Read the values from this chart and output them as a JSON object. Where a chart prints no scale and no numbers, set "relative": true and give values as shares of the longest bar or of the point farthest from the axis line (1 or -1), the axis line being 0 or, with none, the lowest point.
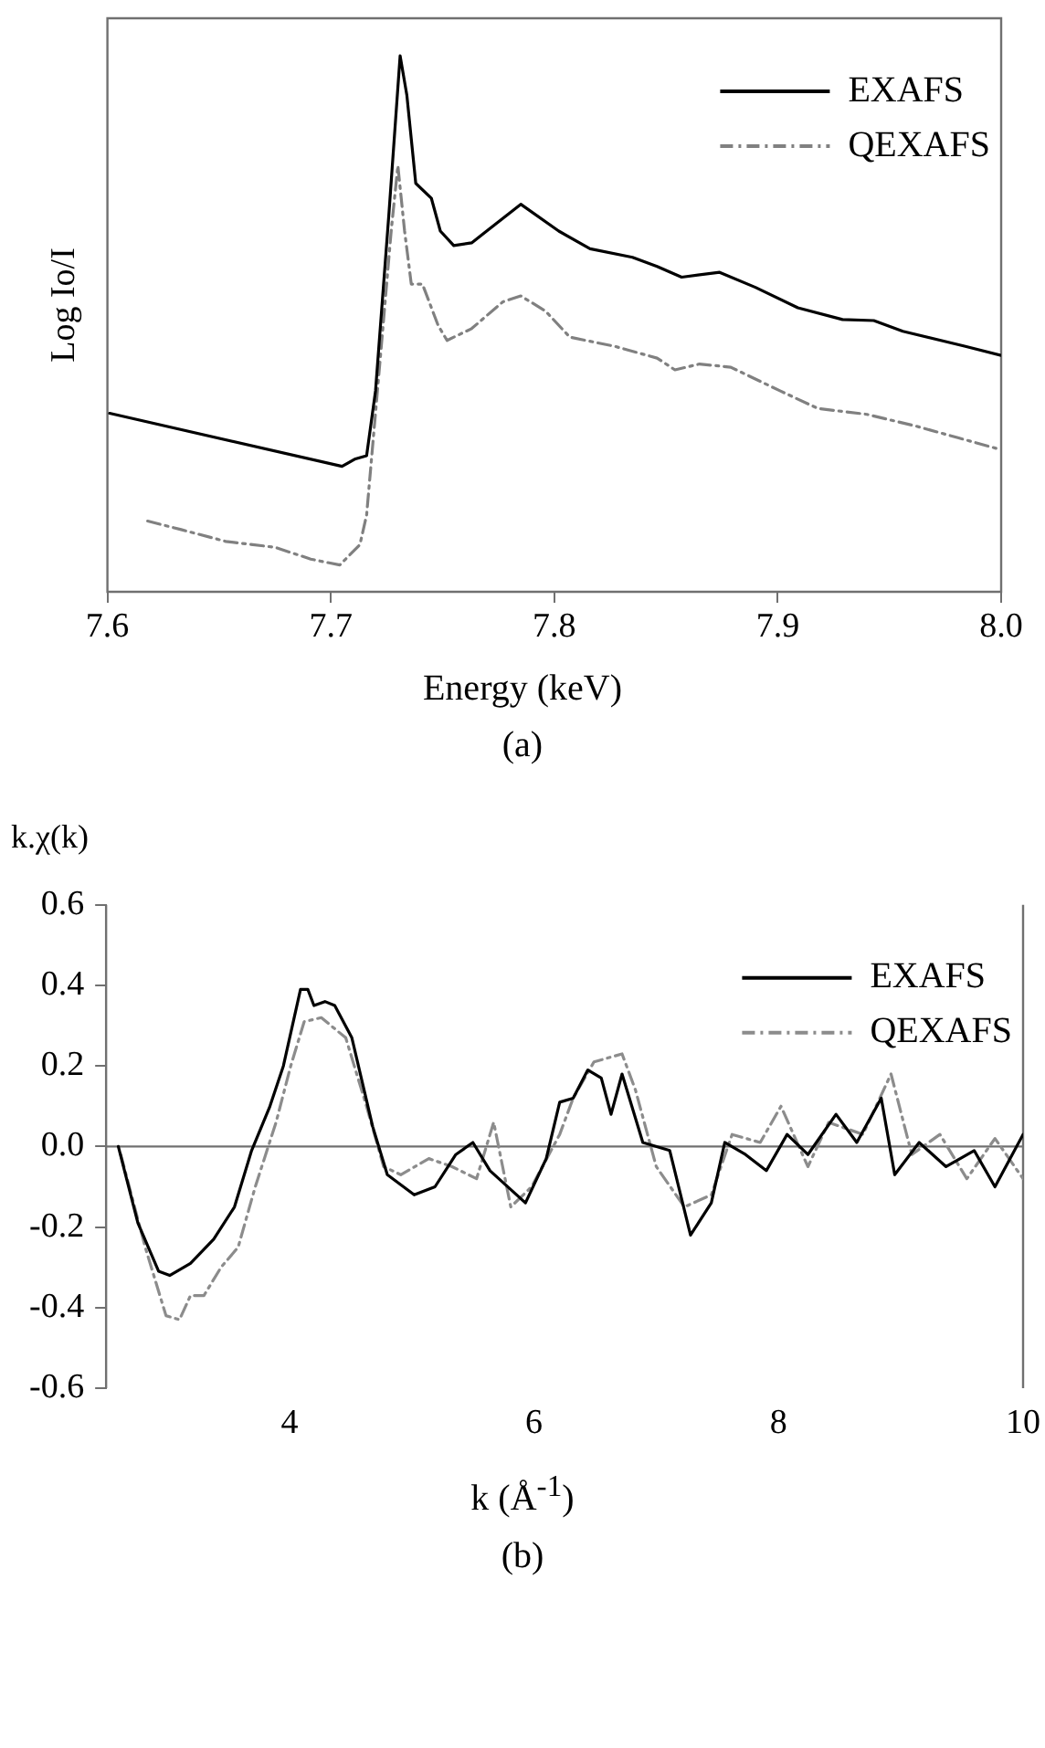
{
  "chart_data": [
    {
      "type": "line",
      "xlabel": "Energy (keV)",
      "ylabel": "Log Io/I",
      "relative": true,
      "xlim": [
        7.6,
        8.0
      ],
      "xticks": [
        7.6,
        7.7,
        7.8,
        7.9,
        {
          "value": 8,
          "label": "8.0"
        }
      ],
      "grid": false,
      "legend": "top right",
      "marker": "none",
      "annotations": [
        "(a)"
      ],
      "series": [
        {
          "name": "EXAFS",
          "color": "#000000",
          "line_style": "solid",
          "x": [
            7.601,
            7.705,
            7.711,
            7.716,
            7.72,
            7.726,
            7.731,
            7.734,
            7.738,
            7.745,
            7.749,
            7.755,
            7.763,
            7.785,
            7.802,
            7.816,
            7.835,
            7.846,
            7.857,
            7.874,
            7.89,
            7.909,
            7.929,
            7.943,
            7.956,
            7.984,
            8.0
          ],
          "values": [
            0.333,
            0.234,
            0.248,
            0.254,
            0.375,
            0.706,
            1.0,
            0.927,
            0.762,
            0.734,
            0.673,
            0.646,
            0.651,
            0.723,
            0.673,
            0.64,
            0.624,
            0.607,
            0.587,
            0.596,
            0.568,
            0.53,
            0.508,
            0.506,
            0.486,
            0.458,
            0.441
          ]
        },
        {
          "name": "QEXAFS",
          "color": "#808080",
          "line_style": "dashed",
          "x": [
            7.618,
            7.633,
            7.653,
            7.675,
            7.691,
            7.704,
            7.713,
            7.716,
            7.722,
            7.727,
            7.73,
            7.733,
            7.736,
            7.741,
            7.748,
            7.752,
            7.763,
            7.777,
            7.785,
            7.796,
            7.807,
            7.827,
            7.846,
            7.854,
            7.865,
            7.879,
            7.901,
            7.918,
            7.94,
            7.962,
            7.981,
            8.0
          ],
          "values": [
            0.132,
            0.116,
            0.094,
            0.083,
            0.061,
            0.05,
            0.088,
            0.143,
            0.43,
            0.673,
            0.795,
            0.673,
            0.574,
            0.574,
            0.497,
            0.469,
            0.491,
            0.541,
            0.552,
            0.524,
            0.475,
            0.458,
            0.436,
            0.414,
            0.425,
            0.419,
            0.375,
            0.342,
            0.331,
            0.309,
            0.287,
            0.265
          ]
        }
      ]
    },
    {
      "type": "line",
      "xlabel": "k (Å$^{-1}$)",
      "ylabel": "k.χ(k)",
      "xlim": [
        2.5,
        10
      ],
      "xticks": [
        4,
        6,
        8,
        10
      ],
      "ylim": [
        -0.6,
        0.6
      ],
      "yticks": [
        {
          "value": -0.6,
          "label": "-0.6"
        },
        {
          "value": -0.4,
          "label": "-0.4"
        },
        {
          "value": -0.2,
          "label": "-0.2"
        },
        {
          "value": 0,
          "label": "0.0"
        },
        {
          "value": 0.2,
          "label": "0.2"
        },
        {
          "value": 0.4,
          "label": "0.4"
        },
        {
          "value": 0.6,
          "label": "0.6"
        }
      ],
      "grid": false,
      "legend": "top right",
      "marker": "none",
      "annotations": [
        "(b)"
      ],
      "ref_lines": [
        {
          "axis": "y",
          "value": 0,
          "color": "#707070"
        }
      ],
      "series": [
        {
          "name": "EXAFS",
          "color": "#000000",
          "line_style": "solid",
          "x": [
            2.6,
            2.76,
            2.93,
            3.02,
            3.19,
            3.38,
            3.55,
            3.69,
            3.84,
            3.95,
            4.09,
            4.15,
            4.2,
            4.29,
            4.37,
            4.51,
            4.68,
            4.8,
            5.02,
            5.19,
            5.36,
            5.5,
            5.64,
            5.93,
            6.1,
            6.21,
            6.32,
            6.44,
            6.55,
            6.63,
            6.72,
            6.89,
            7.11,
            7.28,
            7.45,
            7.56,
            7.73,
            7.9,
            8.07,
            8.24,
            8.47,
            8.64,
            8.84,
            8.95,
            9.15,
            9.37,
            9.6,
            9.77,
            10.0
          ],
          "values": [
            0,
            -0.19,
            -0.31,
            -0.32,
            -0.29,
            -0.23,
            -0.15,
            -0.01,
            0.1,
            0.2,
            0.39,
            0.39,
            0.35,
            0.36,
            0.35,
            0.27,
            0.05,
            -0.07,
            -0.12,
            -0.1,
            -0.02,
            0.01,
            -0.06,
            -0.14,
            -0.03,
            0.11,
            0.12,
            0.19,
            0.17,
            0.08,
            0.18,
            0.01,
            -0.01,
            -0.22,
            -0.14,
            0.01,
            -0.02,
            -0.06,
            0.03,
            -0.02,
            0.08,
            0.01,
            0.12,
            -0.07,
            0.01,
            -0.05,
            -0.01,
            -0.1,
            0.03
          ]
        },
        {
          "name": "QEXAFS",
          "color": "#8c8c8c",
          "line_style": "dashed",
          "x": [
            2.62,
            2.82,
            2.99,
            3.1,
            3.19,
            3.3,
            3.44,
            3.58,
            3.72,
            3.89,
            4.01,
            4.12,
            4.26,
            4.46,
            4.63,
            4.77,
            4.91,
            5.14,
            5.33,
            5.53,
            5.67,
            5.81,
            5.98,
            6.21,
            6.32,
            6.49,
            6.72,
            6.83,
            7.0,
            7.23,
            7.45,
            7.62,
            7.85,
            8.02,
            8.24,
            8.41,
            8.69,
            8.92,
            9.09,
            9.32,
            9.54,
            9.77,
            10.0
          ],
          "values": [
            -0.02,
            -0.25,
            -0.42,
            -0.43,
            -0.37,
            -0.37,
            -0.3,
            -0.25,
            -0.1,
            0.06,
            0.2,
            0.31,
            0.32,
            0.27,
            0.1,
            -0.05,
            -0.07,
            -0.03,
            -0.05,
            -0.08,
            0.06,
            -0.15,
            -0.1,
            0.03,
            0.12,
            0.21,
            0.23,
            0.14,
            -0.05,
            -0.15,
            -0.12,
            0.03,
            0.01,
            0.1,
            -0.05,
            0.06,
            0.03,
            0.18,
            -0.02,
            0.03,
            -0.08,
            0.02,
            -0.08
          ]
        }
      ]
    }
  ]
}
